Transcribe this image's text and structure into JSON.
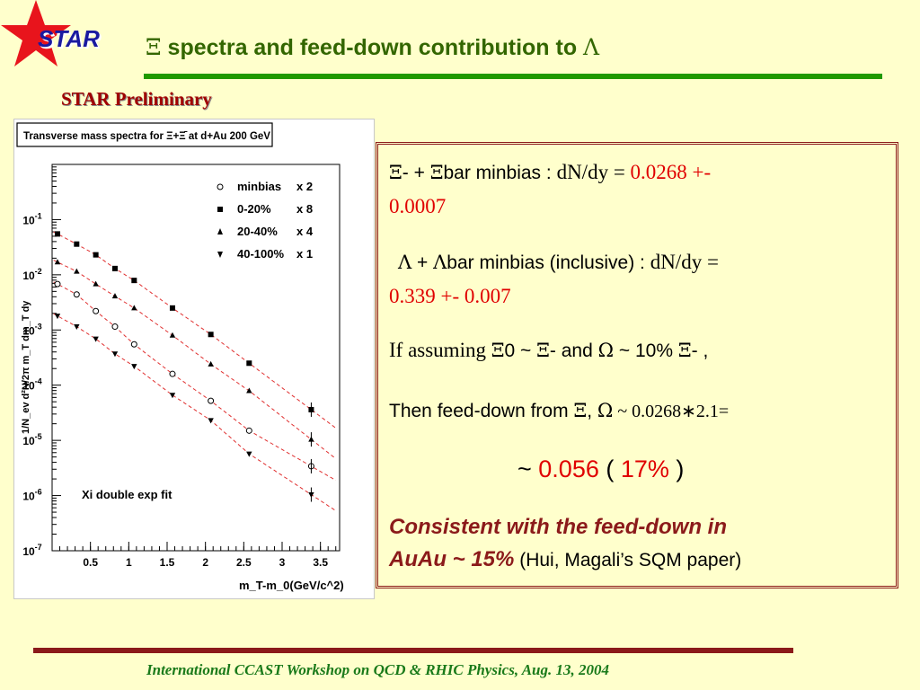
{
  "slide": {
    "logo_text": "STAR",
    "title_symbol_xi": "Ξ",
    "title_text": " spectra and feed-down contribution to ",
    "title_symbol_lambda": "Λ",
    "preliminary": "STAR Preliminary",
    "footer": "International CCAST Workshop on QCD & RHIC Physics, Aug. 13, 2004"
  },
  "textbox": {
    "line1": {
      "sym1": "Ξ",
      "t1": "- + ",
      "sym2": "Ξ",
      "t2": "bar minbias : ",
      "t3": "dN/dy = ",
      "val": "0.0268 +-"
    },
    "line2": {
      "val": "0.0007"
    },
    "line3": {
      "sym1": "Λ",
      "t1": " + ",
      "sym2": "Λ",
      "t2": "bar minbias (inclusive) : ",
      "t3": "dN/dy ="
    },
    "line4": {
      "val": "0.339 +- 0.007"
    },
    "line5": {
      "t1": "If assuming ",
      "sym1": "Ξ",
      "t2": "0 ~ ",
      "sym2": "Ξ",
      "t3": "- and ",
      "sym3": "Ω",
      "t4": " ~ 10% ",
      "sym4": "Ξ",
      "t5": "- ,"
    },
    "line6": {
      "t1": "Then feed-down from ",
      "sym1": "Ξ",
      "t2": ", ",
      "sym2": "Ω",
      "t3": "  ~ 0.0268∗2.1="
    },
    "line7": {
      "t1": "~ ",
      "val1": "0.056",
      "t2": " ( ",
      "val2": "17%",
      "t3": " )"
    },
    "line8": {
      "t1": "Consistent with the feed-down in"
    },
    "line9": {
      "t1": "AuAu ~ 15%",
      "t2": "  (Hui, Magali’s SQM paper)"
    }
  },
  "colors": {
    "title_green": "#336600",
    "rule_green": "#1f9900",
    "dark_red": "#8b1a1a",
    "value_red": "#e00000",
    "fit_red": "#e03030",
    "star_red": "#e8141c"
  },
  "chart_data": {
    "type": "scatter",
    "title": "Transverse mass spectra for Ξ+Ξ̄ at d+Au 200 GeV",
    "xlabel": "m_T-m_0(GeV/c^2)",
    "ylabel": "1/N_ev d²N/2π m_T dm_T dy",
    "log_y": true,
    "xlim": [
      0,
      3.75
    ],
    "ylim": [
      1e-07,
      1
    ],
    "x_ticks": [
      "0.5",
      "1",
      "1.5",
      "2",
      "2.5",
      "3",
      "3.5"
    ],
    "y_ticks": [
      "10^-7",
      "10^-6",
      "10^-5",
      "10^-4",
      "10^-3",
      "10^-2",
      "10^-1"
    ],
    "fit_label": "Xi double exp fit",
    "legend_position": "top-right",
    "series": [
      {
        "name": "minbias",
        "scale": "x  2",
        "marker": "open-circle",
        "x": [
          0.07,
          0.32,
          0.57,
          0.82,
          1.07,
          1.57,
          2.07,
          2.57,
          3.38
        ],
        "y": [
          0.0068,
          0.0044,
          0.0022,
          0.00115,
          0.00055,
          0.00016,
          5.2e-05,
          1.5e-05,
          3.4e-06
        ]
      },
      {
        "name": "0-20%",
        "scale": "x  8",
        "marker": "filled-square",
        "x": [
          0.07,
          0.32,
          0.57,
          0.82,
          1.07,
          1.57,
          2.07,
          2.57,
          3.38
        ],
        "y": [
          0.055,
          0.036,
          0.023,
          0.013,
          0.0079,
          0.0025,
          0.00083,
          0.00025,
          3.6e-05
        ]
      },
      {
        "name": "20-40%",
        "scale": "x  4",
        "marker": "filled-triangle-up",
        "x": [
          0.07,
          0.32,
          0.57,
          0.82,
          1.07,
          1.57,
          2.07,
          2.57,
          3.38
        ],
        "y": [
          0.017,
          0.0115,
          0.0068,
          0.0041,
          0.0025,
          0.0008,
          0.00024,
          7.9e-05,
          1.04e-05
        ]
      },
      {
        "name": "40-100%",
        "scale": "x  1",
        "marker": "filled-triangle-down",
        "x": [
          0.07,
          0.32,
          0.57,
          0.82,
          1.07,
          1.57,
          2.07,
          2.57,
          3.38
        ],
        "y": [
          0.0018,
          0.00115,
          0.00069,
          0.00037,
          0.00022,
          6.6e-05,
          2.3e-05,
          5.7e-06,
          1.04e-06
        ]
      }
    ]
  }
}
